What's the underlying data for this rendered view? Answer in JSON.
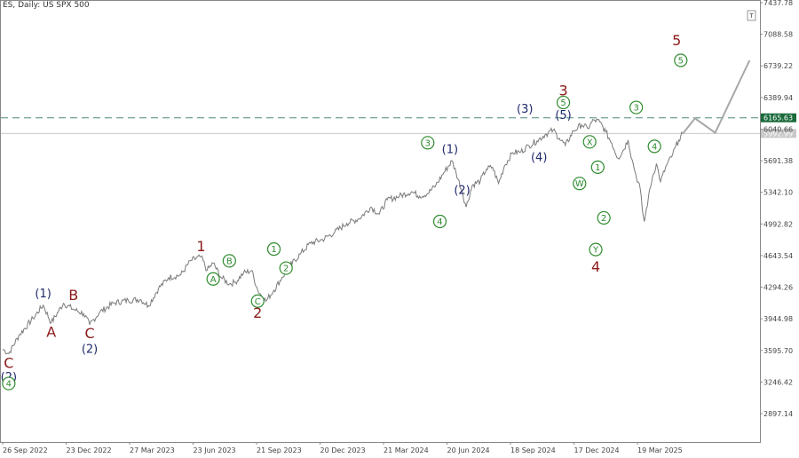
{
  "chart_title": "ES, Daily:  US SPX 500",
  "colors": {
    "price": "#7a7a7a",
    "projection": "#a8a8a8",
    "dashed_level": "#4f8a7d",
    "current_level": "#c8c8c8",
    "wave_major": "#8b1a1a",
    "wave_intermediate": "#1f2a6b",
    "wave_minor": "#2e8b2e",
    "tag_green": "#1a6b3c"
  },
  "chart_data": {
    "type": "line",
    "title": "ES, Daily:  US SPX 500",
    "xlabel": "",
    "ylabel": "",
    "ylim": [
      2600,
      7440
    ],
    "grid": false,
    "y_ticks": [
      "7437.78",
      "7088.58",
      "6739.22",
      "6389.94",
      "6040.66",
      "5691.38",
      "5342.10",
      "4992.82",
      "4643.54",
      "4294.26",
      "3944.98",
      "3595.70",
      "3246.42",
      "2897.14"
    ],
    "x_ticks": [
      "26 Sep 2022",
      "23 Dec 2022",
      "27 Mar 2023",
      "23 Jun 2023",
      "21 Sep 2023",
      "20 Dec 2023",
      "21 Mar 2024",
      "20 Jun 2024",
      "18 Sep 2024",
      "17 Dec 2024",
      "19 Mar 2025"
    ],
    "price_path": [
      [
        0,
        3610
      ],
      [
        3,
        3560
      ],
      [
        8,
        3760
      ],
      [
        15,
        3950
      ],
      [
        20,
        4095
      ],
      [
        24,
        3900
      ],
      [
        30,
        4115
      ],
      [
        35,
        4050
      ],
      [
        40,
        4000
      ],
      [
        43,
        3880
      ],
      [
        48,
        4020
      ],
      [
        55,
        4120
      ],
      [
        62,
        4150
      ],
      [
        68,
        4160
      ],
      [
        72,
        4090
      ],
      [
        77,
        4280
      ],
      [
        82,
        4400
      ],
      [
        88,
        4430
      ],
      [
        93,
        4590
      ],
      [
        98,
        4630
      ],
      [
        101,
        4480
      ],
      [
        104,
        4560
      ],
      [
        108,
        4400
      ],
      [
        112,
        4330
      ],
      [
        115,
        4350
      ],
      [
        119,
        4450
      ],
      [
        123,
        4480
      ],
      [
        126,
        4260
      ],
      [
        130,
        4140
      ],
      [
        134,
        4260
      ],
      [
        138,
        4400
      ],
      [
        142,
        4530
      ],
      [
        147,
        4660
      ],
      [
        152,
        4780
      ],
      [
        158,
        4820
      ],
      [
        164,
        4900
      ],
      [
        170,
        5000
      ],
      [
        176,
        5050
      ],
      [
        182,
        5180
      ],
      [
        186,
        5100
      ],
      [
        190,
        5260
      ],
      [
        196,
        5300
      ],
      [
        202,
        5350
      ],
      [
        206,
        5300
      ],
      [
        210,
        5330
      ],
      [
        214,
        5420
      ],
      [
        218,
        5560
      ],
      [
        222,
        5690
      ],
      [
        224,
        5560
      ],
      [
        227,
        5350
      ],
      [
        229,
        5180
      ],
      [
        232,
        5420
      ],
      [
        236,
        5470
      ],
      [
        239,
        5600
      ],
      [
        242,
        5620
      ],
      [
        245,
        5440
      ],
      [
        248,
        5640
      ],
      [
        252,
        5780
      ],
      [
        256,
        5790
      ],
      [
        260,
        5860
      ],
      [
        264,
        5910
      ],
      [
        268,
        5980
      ],
      [
        272,
        6030
      ],
      [
        275,
        5940
      ],
      [
        278,
        5860
      ],
      [
        282,
        6020
      ],
      [
        286,
        6090
      ],
      [
        289,
        6050
      ],
      [
        292,
        6140
      ],
      [
        295,
        6120
      ],
      [
        298,
        6010
      ],
      [
        301,
        5880
      ],
      [
        304,
        5720
      ],
      [
        306,
        5780
      ],
      [
        309,
        5920
      ],
      [
        311,
        5700
      ],
      [
        313,
        5520
      ],
      [
        315,
        5380
      ],
      [
        316,
        5150
      ],
      [
        317,
        5020
      ],
      [
        319,
        5280
      ],
      [
        321,
        5510
      ],
      [
        323,
        5660
      ],
      [
        325,
        5460
      ],
      [
        328,
        5640
      ],
      [
        331,
        5760
      ],
      [
        334,
        5920
      ],
      [
        336,
        5990
      ]
    ],
    "projection_path": [
      [
        336,
        5990
      ],
      [
        342,
        6160
      ],
      [
        352,
        6000
      ],
      [
        369,
        6800
      ]
    ],
    "reference_levels": [
      {
        "label": "6165.63",
        "value": 6165.63,
        "style": "dashed"
      },
      {
        "label": "5992.99",
        "value": 5992.99,
        "style": "current"
      }
    ],
    "annotations": [
      {
        "text": "(1)",
        "x": 20,
        "y": 4225,
        "group": "intermediate"
      },
      {
        "text": "A",
        "x": 24,
        "y": 3800,
        "group": "major"
      },
      {
        "text": "B",
        "x": 35,
        "y": 4205,
        "group": "major"
      },
      {
        "text": "C",
        "x": 43,
        "y": 3785,
        "group": "major"
      },
      {
        "text": "(2)",
        "x": 43,
        "y": 3615,
        "group": "intermediate"
      },
      {
        "text": "C",
        "x": 3,
        "y": 3455,
        "group": "major"
      },
      {
        "text": "(2)",
        "x": 3,
        "y": 3305,
        "group": "intermediate"
      },
      {
        "text": "4",
        "x": 3,
        "y": 3230,
        "group": "minor",
        "circled": true
      },
      {
        "text": "1",
        "x": 98,
        "y": 4745,
        "group": "major"
      },
      {
        "text": "A",
        "x": 104,
        "y": 4385,
        "group": "minor",
        "circled": true
      },
      {
        "text": "B",
        "x": 112,
        "y": 4585,
        "group": "minor",
        "circled": true
      },
      {
        "text": "C",
        "x": 126,
        "y": 4140,
        "group": "minor",
        "circled": true
      },
      {
        "text": "2",
        "x": 126,
        "y": 4010,
        "group": "major"
      },
      {
        "text": "1",
        "x": 134,
        "y": 4715,
        "group": "minor",
        "circled": true
      },
      {
        "text": "2",
        "x": 140,
        "y": 4505,
        "group": "minor",
        "circled": true
      },
      {
        "text": "3",
        "x": 210,
        "y": 5890,
        "group": "minor",
        "circled": true
      },
      {
        "text": "4",
        "x": 216,
        "y": 5020,
        "group": "minor",
        "circled": true
      },
      {
        "text": "(1)",
        "x": 221,
        "y": 5820,
        "group": "intermediate"
      },
      {
        "text": "(2)",
        "x": 227,
        "y": 5370,
        "group": "intermediate"
      },
      {
        "text": "(3)",
        "x": 258,
        "y": 6265,
        "group": "intermediate"
      },
      {
        "text": "(4)",
        "x": 265,
        "y": 5730,
        "group": "intermediate"
      },
      {
        "text": "3",
        "x": 277,
        "y": 6470,
        "group": "major"
      },
      {
        "text": "5",
        "x": 277,
        "y": 6335,
        "group": "minor",
        "circled": true
      },
      {
        "text": "(5)",
        "x": 277,
        "y": 6200,
        "group": "intermediate"
      },
      {
        "text": "W",
        "x": 285,
        "y": 5440,
        "group": "minor",
        "circled": true
      },
      {
        "text": "X",
        "x": 290,
        "y": 5900,
        "group": "minor",
        "circled": true
      },
      {
        "text": "1",
        "x": 294,
        "y": 5620,
        "group": "minor",
        "circled": true
      },
      {
        "text": "2",
        "x": 297,
        "y": 5060,
        "group": "minor",
        "circled": true
      },
      {
        "text": "Y",
        "x": 293,
        "y": 4710,
        "group": "minor",
        "circled": true
      },
      {
        "text": "4",
        "x": 293,
        "y": 4520,
        "group": "major"
      },
      {
        "text": "3",
        "x": 313,
        "y": 6280,
        "group": "minor",
        "circled": true
      },
      {
        "text": "4",
        "x": 322,
        "y": 5850,
        "group": "minor",
        "circled": true
      },
      {
        "text": "5",
        "x": 333,
        "y": 7020,
        "group": "major"
      },
      {
        "text": "5",
        "x": 335,
        "y": 6800,
        "group": "minor",
        "circled": true
      }
    ]
  }
}
